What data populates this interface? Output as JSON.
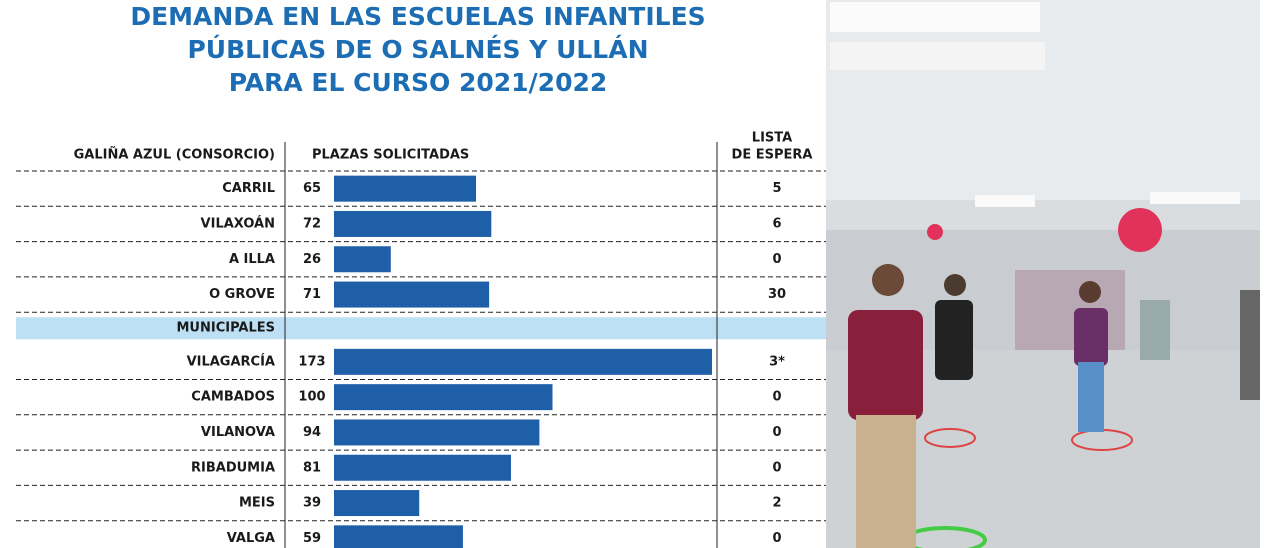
{
  "chart_data": {
    "type": "bar",
    "title": [
      "DEMANDA EN LAS ESCUELAS INFANTILES",
      "PÚBLICAS DE O SALNÉS Y ULLÁN",
      "PARA EL CURSO 2021/2022"
    ],
    "value_header": "PLAZAS SOLICITADAS",
    "waiting_header": [
      "LISTA",
      "DE ESPERA"
    ],
    "color": "#1f5fa8",
    "groups": [
      {
        "name": "GALIÑA AZUL (CONSORCIO)",
        "categories": [
          "CARRIL",
          "VILAXOÁN",
          "A ILLA",
          "O GROVE"
        ],
        "values": [
          65,
          72,
          26,
          71
        ],
        "waiting": [
          5,
          6,
          0,
          30
        ]
      },
      {
        "name": "MUNICIPALES",
        "categories": [
          "VILAGARCÍA",
          "CAMBADOS",
          "VILANOVA",
          "RIBADUMIA",
          "MEIS",
          "VALGA"
        ],
        "values": [
          173,
          100,
          94,
          81,
          39,
          59
        ],
        "waiting": [
          3,
          0,
          0,
          0,
          2,
          0
        ],
        "waiting_labels": [
          "3*",
          "0",
          "0",
          "0",
          "2",
          "0"
        ]
      }
    ]
  }
}
